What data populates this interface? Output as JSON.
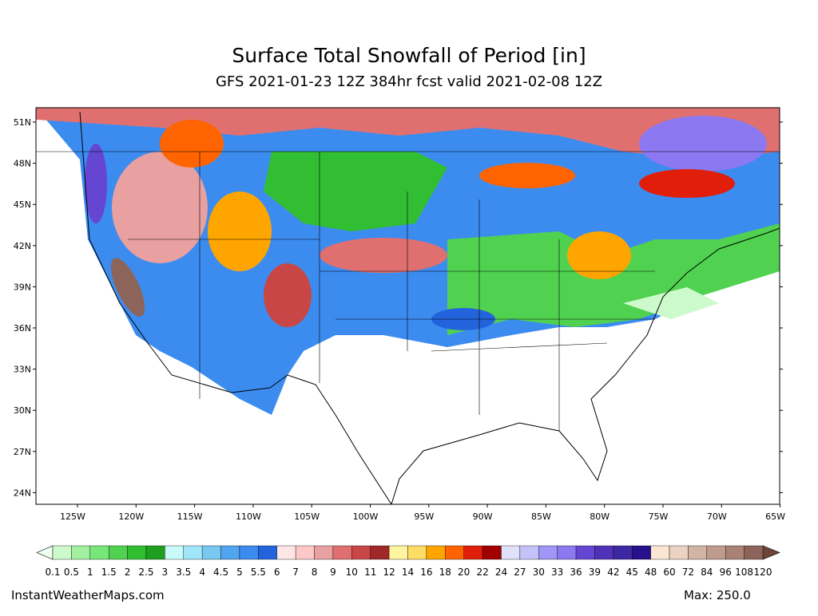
{
  "header": {
    "title": "Surface Total Snowfall of Period [in]",
    "subtitle": "GFS 2021-01-23 12Z 384hr fcst valid 2021-02-08 12Z"
  },
  "map": {
    "lat_ticks": [
      {
        "value": 51,
        "label": "51N"
      },
      {
        "value": 48,
        "label": "48N"
      },
      {
        "value": 45,
        "label": "45N"
      },
      {
        "value": 42,
        "label": "42N"
      },
      {
        "value": 39,
        "label": "39N"
      },
      {
        "value": 36,
        "label": "36N"
      },
      {
        "value": 33,
        "label": "33N"
      },
      {
        "value": 30,
        "label": "30N"
      },
      {
        "value": 27,
        "label": "27N"
      },
      {
        "value": 24,
        "label": "24N"
      }
    ],
    "lon_ticks": [
      {
        "value": -125,
        "label": "125W"
      },
      {
        "value": -120,
        "label": "120W"
      },
      {
        "value": -115,
        "label": "115W"
      },
      {
        "value": -110,
        "label": "110W"
      },
      {
        "value": -105,
        "label": "105W"
      },
      {
        "value": -100,
        "label": "100W"
      },
      {
        "value": -95,
        "label": "95W"
      },
      {
        "value": -90,
        "label": "90W"
      },
      {
        "value": -85,
        "label": "85W"
      },
      {
        "value": -80,
        "label": "80W"
      },
      {
        "value": -75,
        "label": "75W"
      },
      {
        "value": -70,
        "label": "70W"
      },
      {
        "value": -65,
        "label": "65W"
      }
    ]
  },
  "colorbar": {
    "levels": [
      0.1,
      0.5,
      1,
      1.5,
      2,
      2.5,
      3,
      3.5,
      4,
      4.5,
      5,
      5.5,
      6,
      7,
      8,
      9,
      10,
      11,
      12,
      14,
      16,
      18,
      20,
      22,
      24,
      27,
      30,
      33,
      36,
      39,
      42,
      45,
      48,
      60,
      72,
      84,
      96,
      108,
      120
    ],
    "colors": [
      "#cdfacd",
      "#a0f0a0",
      "#78e678",
      "#50d250",
      "#32be32",
      "#1ea01e",
      "#c8fafa",
      "#a0e6fa",
      "#78c8f0",
      "#50a5f0",
      "#3c8cf0",
      "#2364dc",
      "#ffe6e6",
      "#ffc8c8",
      "#e8a0a0",
      "#e07070",
      "#c84646",
      "#a02828",
      "#fff5a0",
      "#ffdc64",
      "#ffa500",
      "#ff6400",
      "#e01e0a",
      "#a00000",
      "#e1e1fa",
      "#c3c3fa",
      "#a096f5",
      "#8c78f0",
      "#6446d2",
      "#5032b9",
      "#3c28a0",
      "#280f8c",
      "#fae6d2",
      "#ebd2c3",
      "#d2b4a5",
      "#be9b8c",
      "#aa8273",
      "#8c6459"
    ],
    "under_color": "#f0fff0",
    "over_color": "#6e4637"
  },
  "footer": {
    "credit": "InstantWeatherMaps.com",
    "max": "Max: 250.0"
  }
}
